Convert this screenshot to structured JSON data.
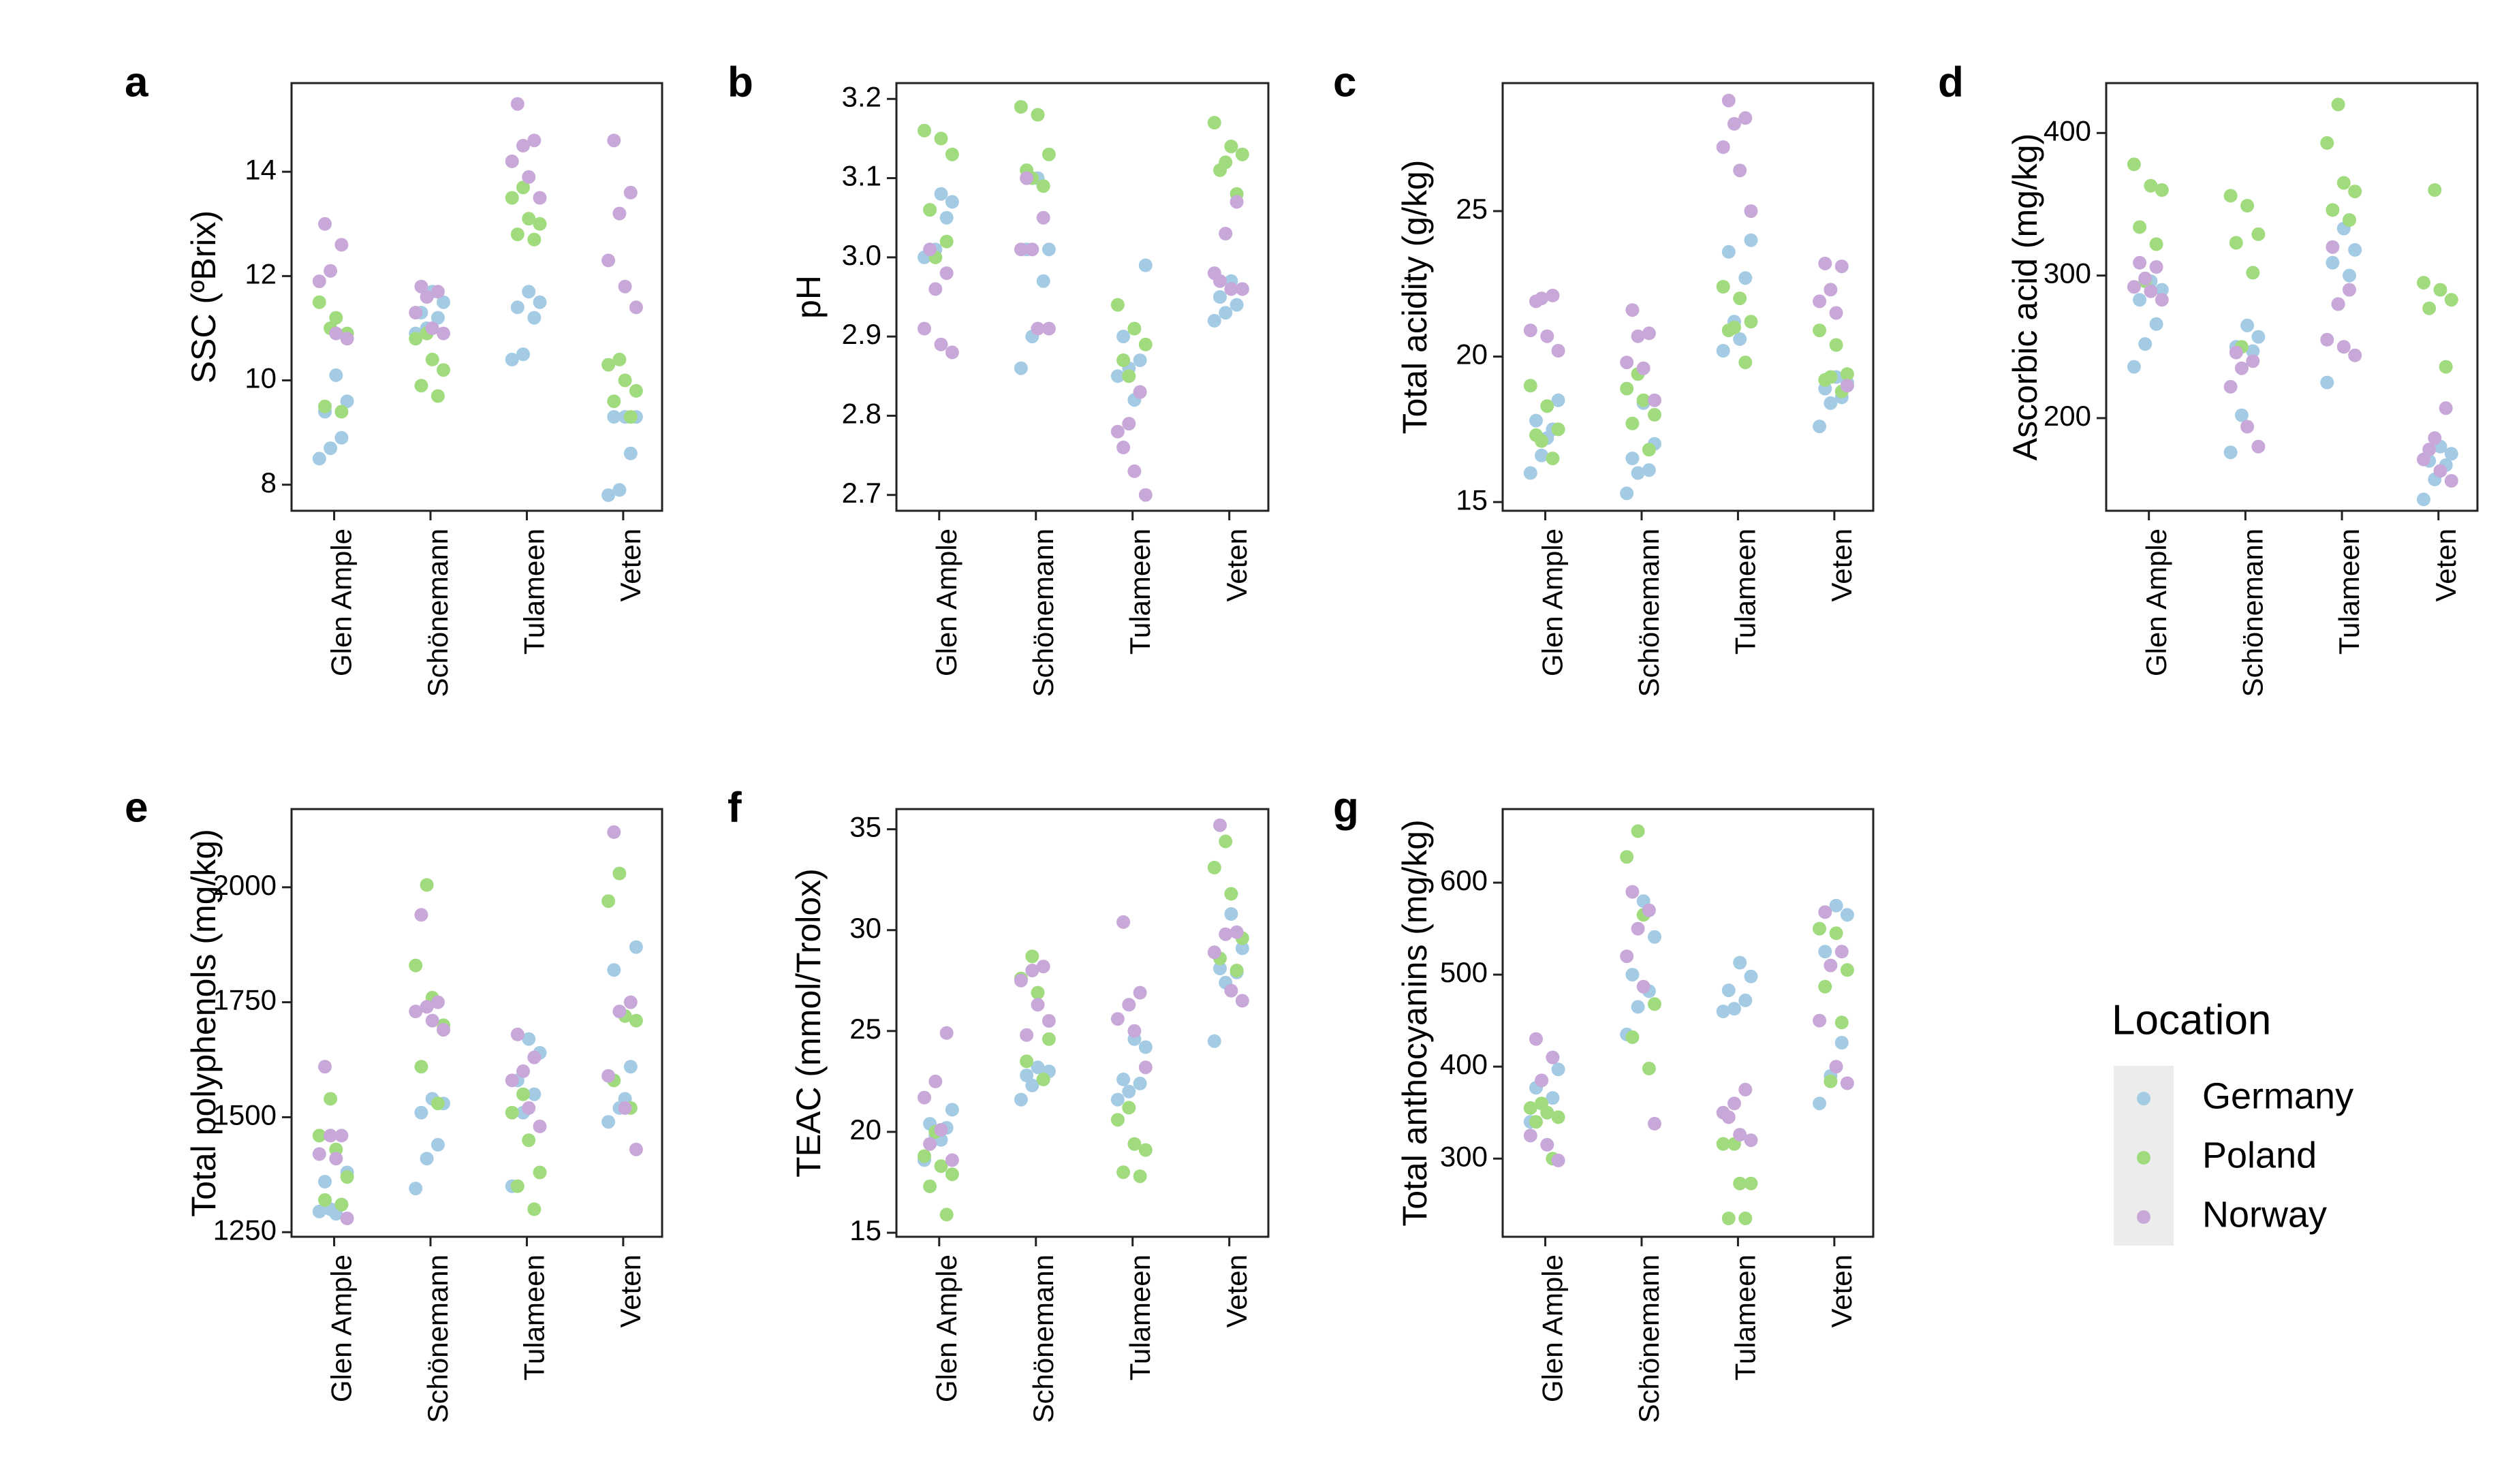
{
  "colors": {
    "Germany": "#a4cbe4",
    "Poland": "#a0db7e",
    "Norway": "#c8a8d8",
    "legend_bg": "#ececec",
    "axis": "#222222"
  },
  "legend": {
    "title": "Location",
    "entries": [
      "Germany",
      "Poland",
      "Norway"
    ]
  },
  "chart_data": [
    {
      "panel": "a",
      "type": "scatter",
      "ylabel": "SSC (ºBrix)",
      "categories": [
        "Glen Ample",
        "Schönemann",
        "Tulameen",
        "Veten"
      ],
      "ylim": [
        7.5,
        15.7
      ],
      "yticks": [
        8,
        10,
        12,
        14
      ],
      "series": [
        {
          "name": "Germany",
          "values": [
            [
              8.5,
              8.7,
              8.9,
              9.4,
              9.6,
              10.1
            ],
            [
              10.9,
              11.0,
              11.2,
              11.3,
              11.5,
              11.7
            ],
            [
              10.4,
              10.5,
              11.2,
              11.4,
              11.5,
              11.7
            ],
            [
              7.8,
              7.9,
              8.6,
              9.3,
              9.3,
              9.3
            ]
          ]
        },
        {
          "name": "Poland",
          "values": [
            [
              9.4,
              9.5,
              10.9,
              11.2,
              11.5,
              11.0
            ],
            [
              9.7,
              9.9,
              10.2,
              10.4,
              10.8,
              10.9
            ],
            [
              12.7,
              12.8,
              13.0,
              13.1,
              13.5,
              13.7
            ],
            [
              9.3,
              9.6,
              9.8,
              10.0,
              10.3,
              10.4
            ]
          ]
        },
        {
          "name": "Norway",
          "values": [
            [
              10.8,
              10.9,
              11.9,
              12.1,
              12.6,
              13.0
            ],
            [
              10.9,
              11.0,
              11.3,
              11.6,
              11.7,
              11.8
            ],
            [
              13.5,
              13.9,
              14.2,
              14.5,
              14.6,
              15.3
            ],
            [
              11.4,
              11.8,
              12.3,
              13.2,
              13.6,
              14.6
            ]
          ]
        }
      ]
    },
    {
      "panel": "b",
      "type": "scatter",
      "ylabel": "pH",
      "categories": [
        "Glen Ample",
        "Schönemann",
        "Tulameen",
        "Veten"
      ],
      "ylim": [
        2.68,
        3.22
      ],
      "yticks": [
        2.7,
        2.8,
        2.9,
        3.0,
        3.1,
        3.2
      ],
      "series": [
        {
          "name": "Germany",
          "values": [
            [
              3.0,
              3.01,
              3.05,
              3.06,
              3.07,
              3.08
            ],
            [
              2.86,
              2.9,
              2.97,
              3.01,
              3.01,
              3.1
            ],
            [
              2.85,
              2.86,
              2.87,
              2.9,
              2.99,
              2.82
            ],
            [
              2.92,
              2.93,
              2.94,
              2.95,
              2.96,
              2.97
            ]
          ]
        },
        {
          "name": "Poland",
          "values": [
            [
              3.02,
              3.06,
              3.13,
              3.15,
              3.16,
              3.0
            ],
            [
              3.09,
              3.11,
              3.13,
              3.18,
              3.19,
              3.1
            ],
            [
              2.83,
              2.87,
              2.89,
              2.91,
              2.94,
              2.85
            ],
            [
              3.08,
              3.11,
              3.13,
              3.14,
              3.17,
              3.12
            ]
          ]
        },
        {
          "name": "Norway",
          "values": [
            [
              2.88,
              2.89,
              2.91,
              2.96,
              2.98,
              3.01
            ],
            [
              2.91,
              2.91,
              3.01,
              3.01,
              3.05,
              3.1
            ],
            [
              2.7,
              2.73,
              2.78,
              2.79,
              2.83,
              2.76
            ],
            [
              2.96,
              2.96,
              2.98,
              3.03,
              3.07,
              2.97
            ]
          ]
        }
      ]
    },
    {
      "panel": "c",
      "type": "scatter",
      "ylabel": "Total acidity (g/kg)",
      "categories": [
        "Glen Ample",
        "Schönemann",
        "Tulameen",
        "Veten"
      ],
      "ylim": [
        14.7,
        29.4
      ],
      "yticks": [
        15,
        20,
        25
      ],
      "series": [
        {
          "name": "Germany",
          "values": [
            [
              16.0,
              16.6,
              17.5,
              17.8,
              18.5,
              17.2
            ],
            [
              15.3,
              16.0,
              16.1,
              16.5,
              17.0,
              18.4
            ],
            [
              20.2,
              21.2,
              22.7,
              23.6,
              24.0,
              20.6
            ],
            [
              17.6,
              18.4,
              18.6,
              18.9,
              19.1,
              19.3
            ]
          ]
        },
        {
          "name": "Poland",
          "values": [
            [
              16.5,
              17.3,
              17.5,
              18.3,
              19.0,
              17.1
            ],
            [
              16.8,
              17.7,
              18.0,
              18.5,
              18.9,
              19.4
            ],
            [
              19.8,
              20.9,
              21.2,
              22.0,
              22.4,
              21.0
            ],
            [
              18.8,
              19.2,
              19.4,
              20.4,
              20.9,
              19.3
            ]
          ]
        },
        {
          "name": "Norway",
          "values": [
            [
              20.2,
              20.7,
              20.9,
              22.0,
              22.1,
              21.9
            ],
            [
              18.5,
              19.6,
              19.8,
              20.7,
              20.8,
              21.6
            ],
            [
              25.0,
              26.4,
              27.2,
              28.0,
              28.2,
              28.8
            ],
            [
              19.0,
              21.5,
              21.9,
              22.3,
              23.1,
              23.2
            ]
          ]
        }
      ]
    },
    {
      "panel": "d",
      "type": "scatter",
      "ylabel": "Ascorbic acid (mg/kg)",
      "categories": [
        "Glen Ample",
        "Schönemann",
        "Tulameen",
        "Veten"
      ],
      "ylim": [
        135,
        435
      ],
      "yticks": [
        200,
        300,
        400
      ],
      "series": [
        {
          "name": "Germany",
          "values": [
            [
              236,
              252,
              266,
              283,
              290,
              296
            ],
            [
              176,
              202,
              247,
              250,
              257,
              265
            ],
            [
              225,
              280,
              300,
              309,
              318,
              333
            ],
            [
              143,
              157,
              167,
              170,
              175,
              180
            ]
          ]
        },
        {
          "name": "Poland",
          "values": [
            [
              322,
              334,
              360,
              363,
              378,
              296
            ],
            [
              302,
              323,
              329,
              349,
              356,
              250
            ],
            [
              339,
              346,
              359,
              365,
              393,
              420
            ],
            [
              236,
              277,
              283,
              290,
              295,
              360
            ]
          ]
        },
        {
          "name": "Norway",
          "values": [
            [
              283,
              289,
              292,
              298,
              306,
              309
            ],
            [
              180,
              194,
              222,
              235,
              240,
              246
            ],
            [
              244,
              250,
              255,
              280,
              290,
              320
            ],
            [
              156,
              163,
              171,
              186,
              207,
              178
            ]
          ]
        }
      ]
    },
    {
      "panel": "e",
      "type": "scatter",
      "ylabel": "Total polyphenols (mg/kg)",
      "categories": [
        "Glen Ample",
        "Schönemann",
        "Tulameen",
        "Veten"
      ],
      "ylim": [
        1240,
        2170
      ],
      "yticks": [
        1250,
        1500,
        1750,
        2000
      ],
      "series": [
        {
          "name": "Germany",
          "values": [
            [
              1295,
              1300,
              1310,
              1360,
              1380,
              1290
            ],
            [
              1345,
              1410,
              1440,
              1510,
              1530,
              1540
            ],
            [
              1350,
              1510,
              1550,
              1580,
              1640,
              1670
            ],
            [
              1490,
              1520,
              1610,
              1820,
              1870,
              1540
            ]
          ]
        },
        {
          "name": "Poland",
          "values": [
            [
              1310,
              1320,
              1370,
              1430,
              1460,
              1540
            ],
            [
              1530,
              1610,
              1700,
              1760,
              1830,
              2005
            ],
            [
              1300,
              1350,
              1380,
              1450,
              1510,
              1550
            ],
            [
              1520,
              1580,
              1710,
              1720,
              1970,
              2030
            ]
          ]
        },
        {
          "name": "Norway",
          "values": [
            [
              1280,
              1410,
              1420,
              1460,
              1460,
              1610
            ],
            [
              1690,
              1710,
              1730,
              1740,
              1750,
              1940
            ],
            [
              1480,
              1520,
              1580,
              1600,
              1630,
              1680
            ],
            [
              1430,
              1520,
              1590,
              1730,
              1750,
              2120
            ]
          ]
        }
      ]
    },
    {
      "panel": "f",
      "type": "scatter",
      "ylabel": "TEAC (mmol/Trolox)",
      "categories": [
        "Glen Ample",
        "Schönemann",
        "Tulameen",
        "Veten"
      ],
      "ylim": [
        14.8,
        36.0
      ],
      "yticks": [
        15,
        20,
        25,
        30,
        35
      ],
      "series": [
        {
          "name": "Germany",
          "values": [
            [
              18.6,
              19.8,
              20.2,
              20.4,
              21.1,
              19.6
            ],
            [
              21.6,
              22.3,
              22.6,
              22.8,
              23.0,
              23.2
            ],
            [
              21.6,
              22.0,
              22.4,
              22.6,
              24.2,
              24.6
            ],
            [
              24.5,
              27.4,
              27.9,
              28.1,
              29.1,
              30.8
            ]
          ]
        },
        {
          "name": "Poland",
          "values": [
            [
              15.9,
              17.3,
              17.9,
              18.3,
              18.8,
              20.0
            ],
            [
              22.6,
              23.5,
              24.6,
              26.9,
              27.6,
              28.7
            ],
            [
              17.8,
              18.0,
              19.1,
              19.4,
              20.6,
              21.2
            ],
            [
              28.0,
              28.6,
              29.6,
              31.8,
              33.1,
              34.4
            ]
          ]
        },
        {
          "name": "Norway",
          "values": [
            [
              18.6,
              20.1,
              21.7,
              22.5,
              24.9,
              19.4
            ],
            [
              25.5,
              26.3,
              27.5,
              28.0,
              28.2,
              24.8
            ],
            [
              23.2,
              25.0,
              25.6,
              26.3,
              26.9,
              30.4
            ],
            [
              26.5,
              27.0,
              28.9,
              29.8,
              29.9,
              35.2
            ]
          ]
        }
      ]
    },
    {
      "panel": "g",
      "type": "scatter",
      "ylabel": "Total anthocyanins (mg/kg)",
      "categories": [
        "Glen Ample",
        "Schönemann",
        "Tulameen",
        "Veten"
      ],
      "ylim": [
        215,
        680
      ],
      "yticks": [
        300,
        400,
        500,
        600
      ],
      "series": [
        {
          "name": "Germany",
          "values": [
            [
              340,
              360,
              366,
              377,
              397,
              350
            ],
            [
              435,
              465,
              482,
              500,
              541,
              580
            ],
            [
              460,
              463,
              472,
              483,
              498,
              513
            ],
            [
              360,
              390,
              426,
              525,
              565,
              575
            ]
          ]
        },
        {
          "name": "Poland",
          "values": [
            [
              300,
              340,
              345,
              350,
              355,
              360
            ],
            [
              398,
              432,
              468,
              565,
              628,
              656
            ],
            [
              235,
              235,
              273,
              273,
              316,
              316
            ],
            [
              448,
              487,
              505,
              545,
              550,
              384
            ]
          ]
        },
        {
          "name": "Norway",
          "values": [
            [
              298,
              315,
              325,
              385,
              410,
              430
            ],
            [
              338,
              487,
              520,
              550,
              570,
              590
            ],
            [
              320,
              326,
              350,
              360,
              375,
              345
            ],
            [
              382,
              400,
              450,
              510,
              525,
              568
            ]
          ]
        }
      ]
    }
  ]
}
